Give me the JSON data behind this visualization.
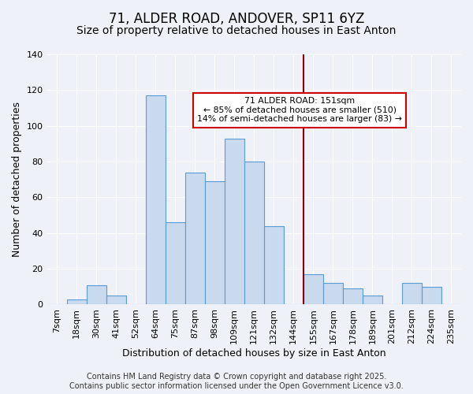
{
  "title": "71, ALDER ROAD, ANDOVER, SP11 6YZ",
  "subtitle": "Size of property relative to detached houses in East Anton",
  "xlabel": "Distribution of detached houses by size in East Anton",
  "ylabel": "Number of detached properties",
  "bins": [
    "7sqm",
    "18sqm",
    "30sqm",
    "41sqm",
    "52sqm",
    "64sqm",
    "75sqm",
    "87sqm",
    "98sqm",
    "109sqm",
    "121sqm",
    "132sqm",
    "144sqm",
    "155sqm",
    "167sqm",
    "178sqm",
    "189sqm",
    "201sqm",
    "212sqm",
    "224sqm",
    "235sqm"
  ],
  "values": [
    0,
    3,
    11,
    5,
    0,
    117,
    46,
    74,
    69,
    93,
    80,
    44,
    0,
    17,
    12,
    9,
    5,
    0,
    12,
    10,
    0
  ],
  "bar_color": "#c9d9ee",
  "bar_edge_color": "#5b9bd5",
  "marker_color": "#8b0000",
  "ylim": [
    0,
    140
  ],
  "yticks": [
    0,
    20,
    40,
    60,
    80,
    100,
    120,
    140
  ],
  "annotation_title": "71 ALDER ROAD: 151sqm",
  "annotation_line1": "← 85% of detached houses are smaller (510)",
  "annotation_line2": "14% of semi-detached houses are larger (83) →",
  "annotation_box_edge": "#cc0000",
  "footer1": "Contains HM Land Registry data © Crown copyright and database right 2025.",
  "footer2": "Contains public sector information licensed under the Open Government Licence v3.0.",
  "background_color": "#eef2f8",
  "plot_bg_color": "#eef2f8",
  "title_fontsize": 12,
  "subtitle_fontsize": 10,
  "axis_label_fontsize": 9,
  "tick_fontsize": 8,
  "footer_fontsize": 7
}
